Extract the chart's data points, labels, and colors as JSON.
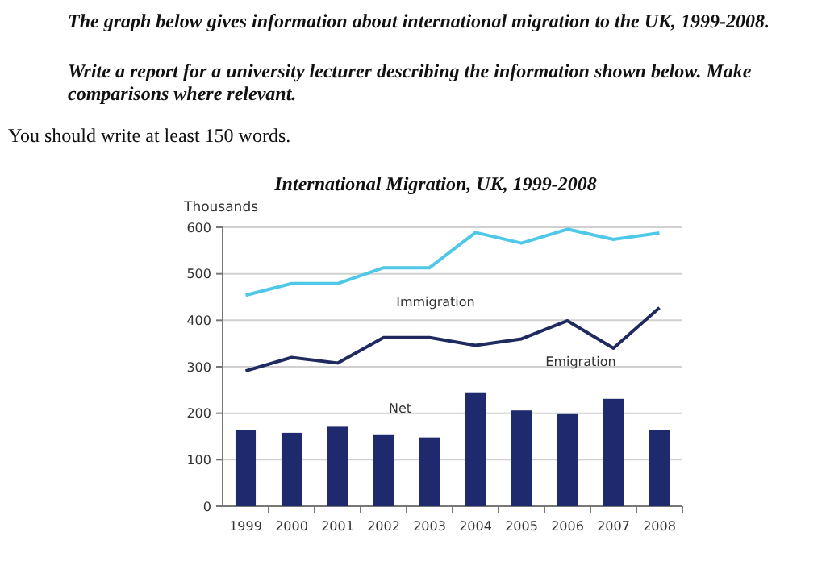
{
  "chart_data": {
    "type": "bar",
    "title": "International Migration, UK, 1999-2008",
    "ylabel": "Thousands",
    "annotations": [
      "The graph below gives information about international migration to the UK, 1999-2008.",
      "Write a report for a university lecturer describing the information shown below. Make comparisons where relevant.",
      "You should write at least 150 words."
    ],
    "categories": [
      "1999",
      "2000",
      "2001",
      "2002",
      "2003",
      "2004",
      "2005",
      "2006",
      "2007",
      "2008"
    ],
    "series": [
      {
        "name": "Immigration",
        "type": "line",
        "color": "#4fc8e8",
        "values": [
          454,
          479,
          479,
          513,
          513,
          589,
          566,
          596,
          574,
          588
        ]
      },
      {
        "name": "Emigration",
        "type": "line",
        "color": "#1f2a5e",
        "values": [
          291,
          320,
          308,
          363,
          363,
          346,
          360,
          399,
          340,
          427
        ]
      },
      {
        "name": "Net",
        "color": "#1f2a6e",
        "values": [
          163,
          158,
          171,
          153,
          148,
          245,
          206,
          198,
          231,
          163
        ]
      }
    ],
    "ylim": [
      0,
      600
    ],
    "yticks": [
      0,
      100,
      200,
      300,
      400,
      500,
      600
    ],
    "grid": "y"
  }
}
